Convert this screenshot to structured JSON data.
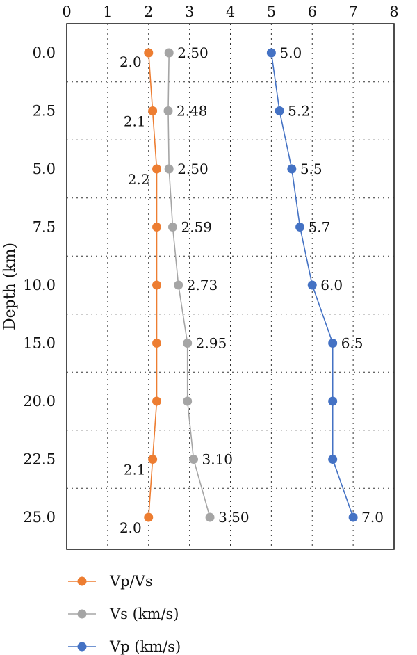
{
  "chart_data": {
    "type": "line",
    "orientation": "vertical-profile",
    "title": "",
    "xlabel": "",
    "ylabel": "Depth (km)",
    "xlim": [
      0,
      8
    ],
    "x_ticks": [
      "0",
      "1",
      "2",
      "3",
      "4",
      "5",
      "6",
      "7",
      "8"
    ],
    "x_axis_position": "top",
    "y_reversed": true,
    "categories": [
      "0.0",
      "2.5",
      "5.0",
      "7.5",
      "10.0",
      "15.0",
      "20.0",
      "22.5",
      "25.0"
    ],
    "grid": true,
    "grid_style": "dotted",
    "legend_position": "bottom-left",
    "series": [
      {
        "name": "Vp/Vs",
        "color": "#ED7D31",
        "values": [
          2.0,
          2.1,
          2.2,
          2.2,
          2.2,
          2.2,
          2.2,
          2.1,
          2.0
        ],
        "labels": [
          "2.0",
          "2.1",
          "2.2",
          "",
          "",
          "",
          "",
          "2.1",
          "2.0"
        ],
        "label_side": "left"
      },
      {
        "name": "Vs (km/s)",
        "color": "#A5A5A5",
        "values": [
          2.5,
          2.48,
          2.5,
          2.59,
          2.73,
          2.95,
          2.95,
          3.1,
          3.5
        ],
        "labels": [
          "2.50",
          "2.48",
          "2.50",
          "2.59",
          "2.73",
          "2.95",
          "",
          "3.10",
          "3.50"
        ],
        "label_side": "right"
      },
      {
        "name": "Vp (km/s)",
        "color": "#4472C4",
        "values": [
          5.0,
          5.2,
          5.5,
          5.7,
          6.0,
          6.5,
          6.5,
          6.5,
          7.0
        ],
        "labels": [
          "5.0",
          "5.2",
          "5.5",
          "5.7",
          "6.0",
          "6.5",
          "",
          "",
          "7.0"
        ],
        "label_side": "right"
      }
    ]
  }
}
